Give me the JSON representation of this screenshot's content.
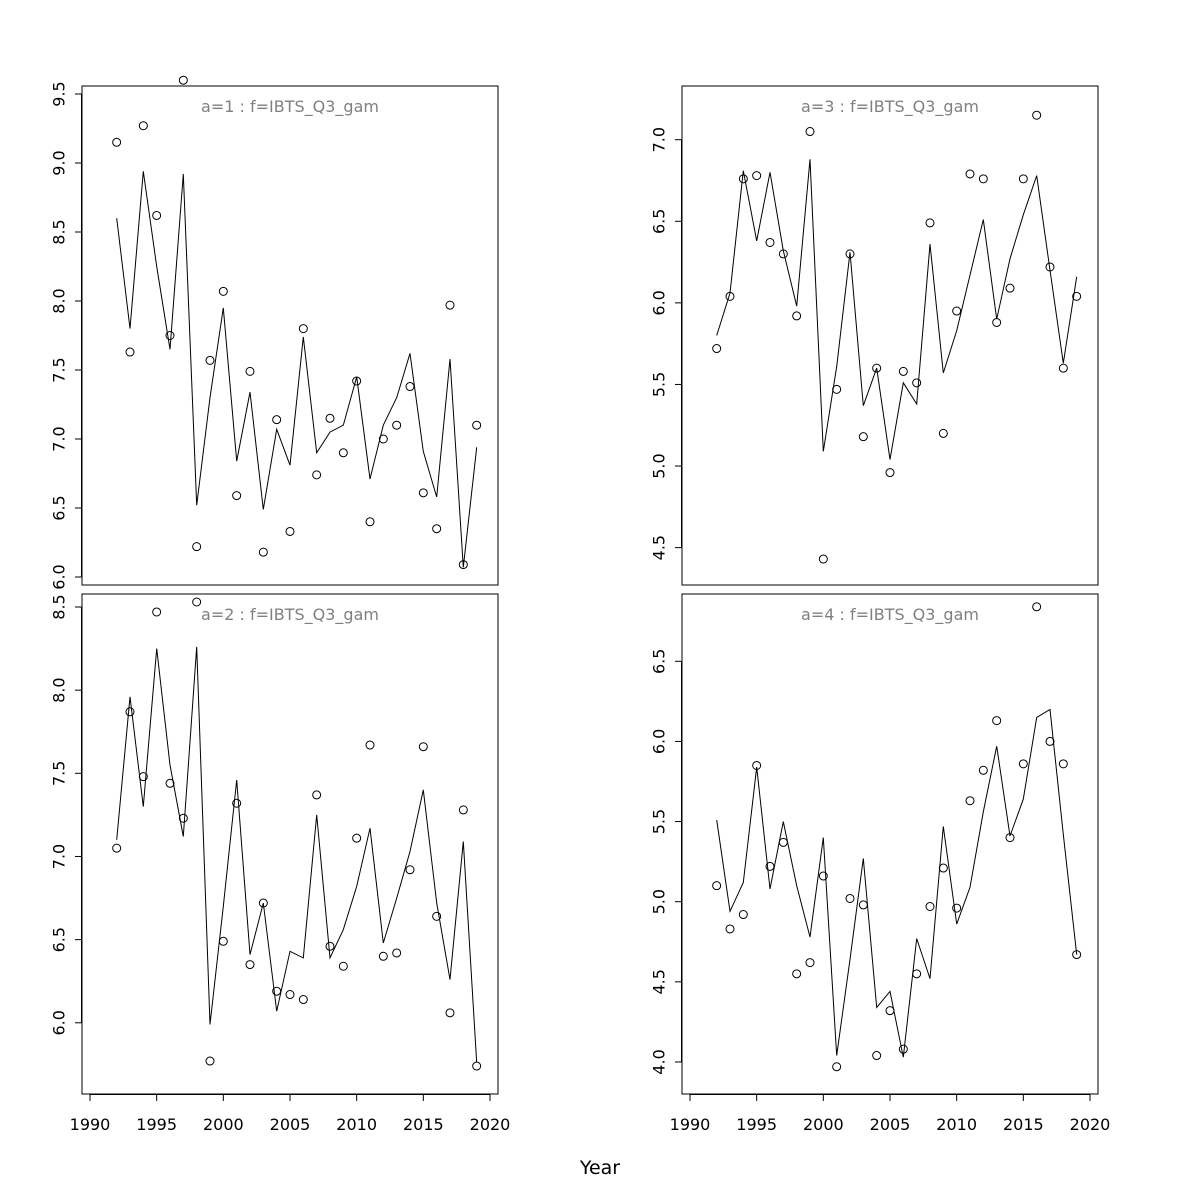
{
  "figure": {
    "xlabel": "Year"
  },
  "colors": {
    "panel_title": "#808080",
    "line": "#000000",
    "point": "#000000",
    "box": "#000000"
  },
  "chart_data": [
    {
      "type": "line+scatter",
      "title": "a=1  :  f=IBTS_Q3_gam",
      "xlim": [
        1990,
        2020
      ],
      "ylim": [
        6.0,
        9.5
      ],
      "xticks": [
        1990,
        1995,
        2000,
        2005,
        2010,
        2015,
        2020
      ],
      "yticks": [
        6.0,
        6.5,
        7.0,
        7.5,
        8.0,
        8.5,
        9.0,
        9.5
      ],
      "x": [
        1992,
        1993,
        1994,
        1995,
        1996,
        1997,
        1998,
        1999,
        2000,
        2001,
        2002,
        2003,
        2004,
        2005,
        2006,
        2007,
        2008,
        2009,
        2010,
        2011,
        2012,
        2013,
        2014,
        2015,
        2016,
        2017,
        2018,
        2019
      ],
      "observed": [
        9.15,
        7.63,
        9.27,
        8.62,
        7.75,
        9.6,
        6.22,
        7.57,
        8.07,
        6.59,
        7.49,
        6.18,
        7.14,
        6.33,
        7.8,
        6.74,
        7.15,
        6.9,
        7.42,
        6.4,
        7.0,
        7.1,
        7.38,
        6.61,
        6.35,
        7.97,
        6.09,
        7.1
      ],
      "fitted": [
        8.6,
        7.8,
        8.94,
        8.25,
        7.65,
        8.92,
        6.52,
        7.3,
        7.95,
        6.84,
        7.34,
        6.49,
        7.07,
        6.81,
        7.74,
        6.9,
        7.05,
        7.1,
        7.45,
        6.71,
        7.1,
        7.3,
        7.62,
        6.91,
        6.58,
        7.58,
        6.07,
        6.94
      ]
    },
    {
      "type": "line+scatter",
      "title": "a=3  :  f=IBTS_Q3_gam",
      "xlim": [
        1990,
        2020
      ],
      "ylim": [
        4.32,
        7.28
      ],
      "xticks": [
        1990,
        1995,
        2000,
        2005,
        2010,
        2015,
        2020
      ],
      "yticks": [
        4.5,
        5.0,
        5.5,
        6.0,
        6.5,
        7.0
      ],
      "x": [
        1992,
        1993,
        1994,
        1995,
        1996,
        1997,
        1998,
        1999,
        2000,
        2001,
        2002,
        2003,
        2004,
        2005,
        2006,
        2007,
        2008,
        2009,
        2010,
        2011,
        2012,
        2013,
        2014,
        2015,
        2016,
        2017,
        2018,
        2019
      ],
      "observed": [
        5.72,
        6.04,
        6.76,
        6.78,
        6.37,
        6.3,
        5.92,
        7.05,
        4.43,
        5.47,
        6.3,
        5.18,
        5.6,
        4.96,
        5.58,
        5.51,
        6.49,
        5.2,
        5.95,
        6.79,
        6.76,
        5.88,
        6.09,
        6.76,
        7.15,
        6.22,
        5.6,
        6.04
      ],
      "fitted": [
        5.8,
        6.06,
        6.81,
        6.38,
        6.8,
        6.32,
        5.98,
        6.88,
        5.09,
        5.61,
        6.31,
        5.37,
        5.6,
        5.04,
        5.51,
        5.38,
        6.36,
        5.57,
        5.83,
        6.17,
        6.51,
        5.9,
        6.27,
        6.54,
        6.78,
        6.2,
        5.63,
        6.16
      ]
    },
    {
      "type": "line+scatter",
      "title": "a=2  :  f=IBTS_Q3_gam",
      "xlim": [
        1990,
        2020
      ],
      "ylim": [
        5.62,
        8.53
      ],
      "xticks": [
        1990,
        1995,
        2000,
        2005,
        2010,
        2015,
        2020
      ],
      "yticks": [
        6.0,
        6.5,
        7.0,
        7.5,
        8.0,
        8.5
      ],
      "x": [
        1992,
        1993,
        1994,
        1995,
        1996,
        1997,
        1998,
        1999,
        2000,
        2001,
        2002,
        2003,
        2004,
        2005,
        2006,
        2007,
        2008,
        2009,
        2010,
        2011,
        2012,
        2013,
        2014,
        2015,
        2016,
        2017,
        2018,
        2019
      ],
      "observed": [
        7.05,
        7.87,
        7.48,
        8.47,
        7.44,
        7.23,
        8.53,
        5.77,
        6.49,
        7.32,
        6.35,
        6.72,
        6.19,
        6.17,
        6.14,
        7.37,
        6.46,
        6.34,
        7.11,
        7.67,
        6.4,
        6.42,
        6.92,
        7.66,
        6.64,
        6.06,
        7.28,
        5.74
      ],
      "fitted": [
        7.1,
        7.96,
        7.3,
        8.25,
        7.55,
        7.12,
        8.26,
        5.99,
        6.7,
        7.46,
        6.41,
        6.72,
        6.07,
        6.43,
        6.39,
        7.25,
        6.39,
        6.56,
        6.82,
        7.17,
        6.48,
        6.75,
        7.03,
        7.4,
        6.72,
        6.26,
        7.09,
        5.76
      ]
    },
    {
      "type": "line+scatter",
      "title": "a=4  :  f=IBTS_Q3_gam",
      "xlim": [
        1990,
        2020
      ],
      "ylim": [
        3.85,
        6.87
      ],
      "xticks": [
        1990,
        1995,
        2000,
        2005,
        2010,
        2015,
        2020
      ],
      "yticks": [
        4.0,
        4.5,
        5.0,
        5.5,
        6.0,
        6.5
      ],
      "x": [
        1992,
        1993,
        1994,
        1995,
        1996,
        1997,
        1998,
        1999,
        2000,
        2001,
        2002,
        2003,
        2004,
        2005,
        2006,
        2007,
        2008,
        2009,
        2010,
        2011,
        2012,
        2013,
        2014,
        2015,
        2016,
        2017,
        2018,
        2019
      ],
      "observed": [
        5.1,
        4.83,
        4.92,
        5.85,
        5.22,
        5.37,
        4.55,
        4.62,
        5.16,
        3.97,
        5.02,
        4.98,
        4.04,
        4.32,
        4.08,
        4.55,
        4.97,
        5.21,
        4.96,
        5.63,
        5.82,
        6.13,
        5.4,
        5.86,
        6.84,
        6.0,
        5.86,
        4.67
      ],
      "fitted": [
        5.51,
        4.94,
        5.12,
        5.84,
        5.08,
        5.5,
        5.1,
        4.78,
        5.4,
        4.04,
        4.64,
        5.27,
        4.34,
        4.44,
        4.03,
        4.77,
        4.52,
        5.47,
        4.86,
        5.09,
        5.56,
        5.97,
        5.41,
        5.64,
        6.15,
        6.2,
        5.42,
        4.67
      ]
    }
  ]
}
